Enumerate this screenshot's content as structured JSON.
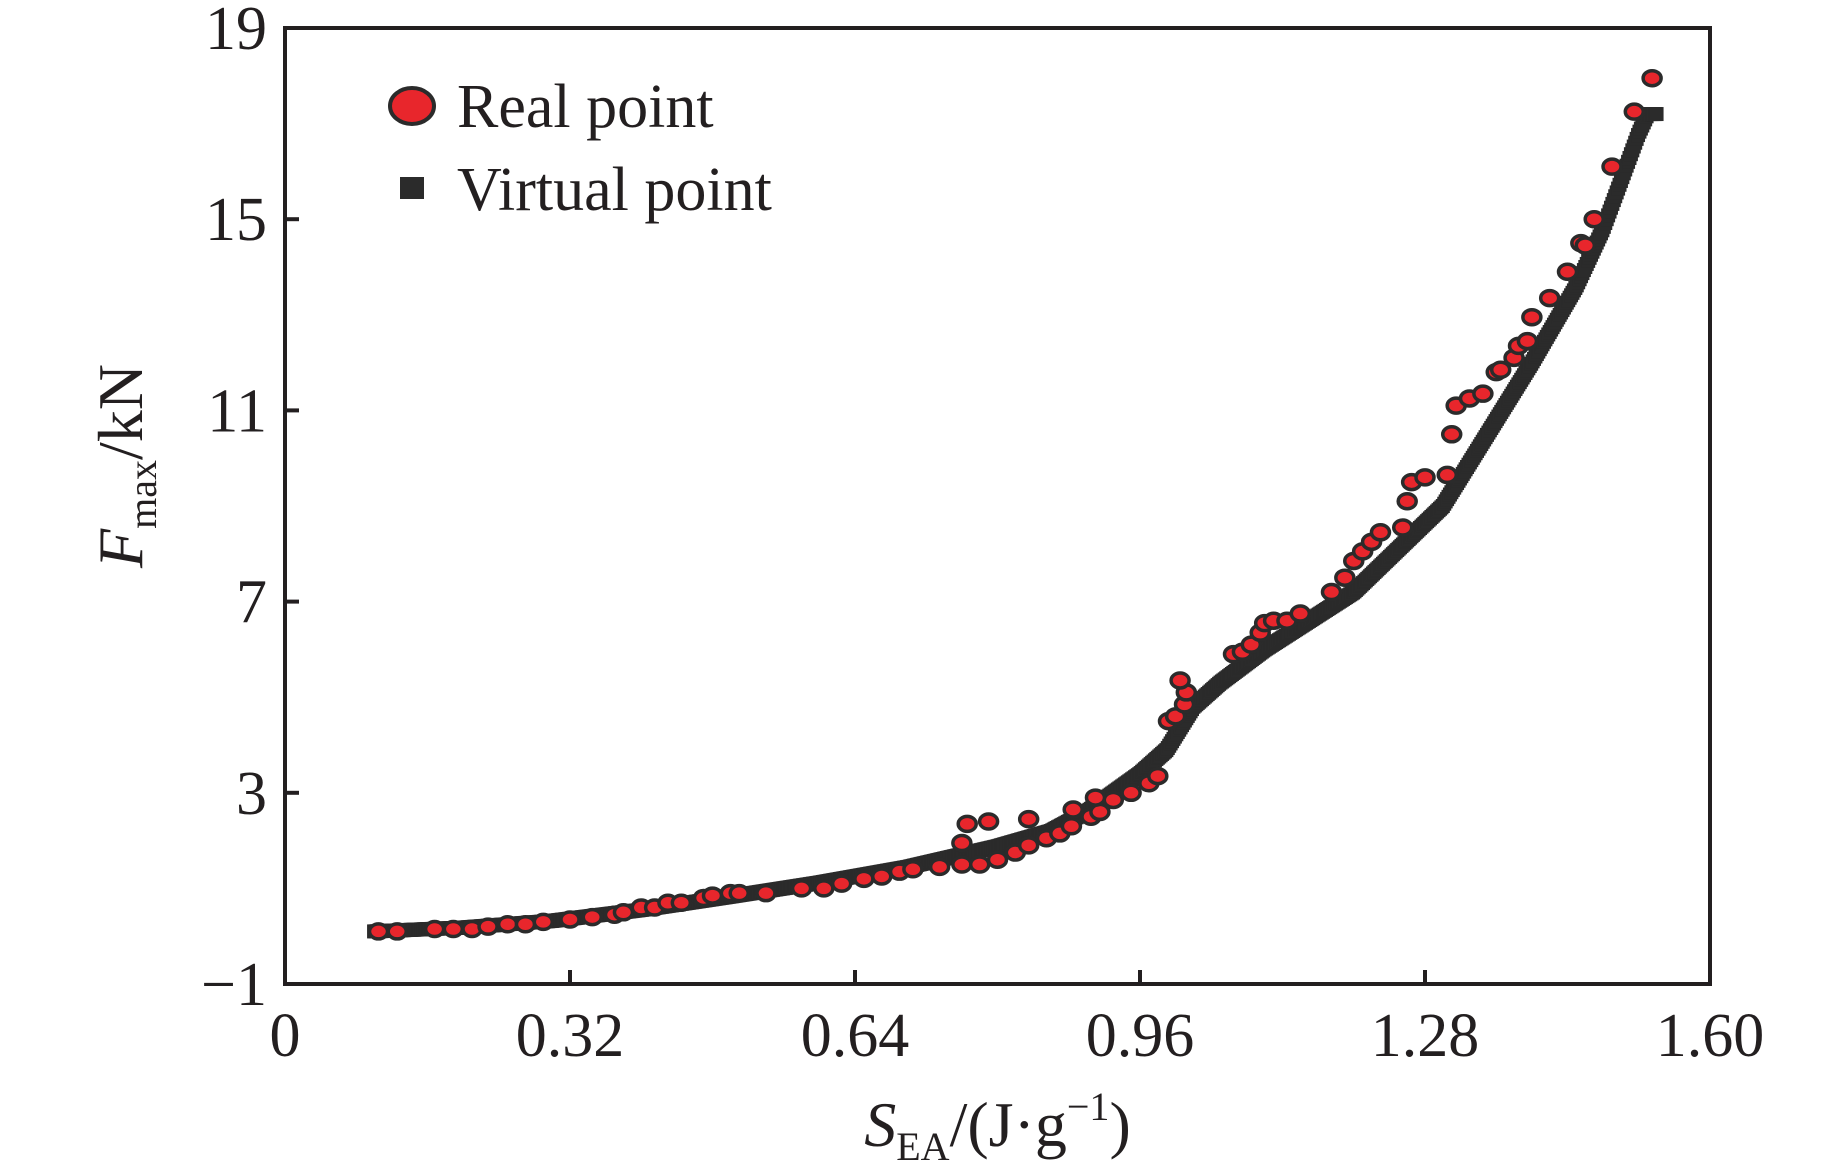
{
  "chart_data": {
    "type": "scatter",
    "xlabel": {
      "main": "S",
      "sub": "EA",
      "rest": "/(J·g",
      "sup": "−1",
      "close": ")"
    },
    "ylabel": {
      "main": "F",
      "sub": "max",
      "rest": "/kN"
    },
    "xlim": [
      0,
      1.6
    ],
    "ylim": [
      -1,
      19
    ],
    "xticks": [
      0,
      0.32,
      0.64,
      0.96,
      1.28,
      1.6
    ],
    "xtick_labels": [
      "0",
      "0.32",
      "0.64",
      "0.96",
      "1.28",
      "1.60"
    ],
    "yticks": [
      -1,
      3,
      7,
      11,
      15,
      19
    ],
    "ytick_labels": [
      "−1",
      "3",
      "7",
      "11",
      "15",
      "19"
    ],
    "grid": false,
    "legend_position": "top-left",
    "series": [
      {
        "name": "Real point",
        "marker": "circle",
        "color": "#e8262c",
        "edge_color": "#2b2b2b",
        "points": [
          [
            0.105,
            0.1
          ],
          [
            0.126,
            0.1
          ],
          [
            0.168,
            0.15
          ],
          [
            0.189,
            0.15
          ],
          [
            0.21,
            0.15
          ],
          [
            0.228,
            0.2
          ],
          [
            0.25,
            0.25
          ],
          [
            0.27,
            0.25
          ],
          [
            0.29,
            0.3
          ],
          [
            0.32,
            0.35
          ],
          [
            0.345,
            0.4
          ],
          [
            0.37,
            0.45
          ],
          [
            0.38,
            0.5
          ],
          [
            0.4,
            0.6
          ],
          [
            0.415,
            0.6
          ],
          [
            0.43,
            0.7
          ],
          [
            0.445,
            0.7
          ],
          [
            0.47,
            0.8
          ],
          [
            0.48,
            0.85
          ],
          [
            0.5,
            0.9
          ],
          [
            0.51,
            0.9
          ],
          [
            0.54,
            0.9
          ],
          [
            0.58,
            1.0
          ],
          [
            0.605,
            1.0
          ],
          [
            0.625,
            1.1
          ],
          [
            0.65,
            1.2
          ],
          [
            0.67,
            1.25
          ],
          [
            0.69,
            1.35
          ],
          [
            0.705,
            1.4
          ],
          [
            0.735,
            1.45
          ],
          [
            0.76,
            1.5
          ],
          [
            0.78,
            1.5
          ],
          [
            0.8,
            1.6
          ],
          [
            0.82,
            1.75
          ],
          [
            0.835,
            1.9
          ],
          [
            0.855,
            2.05
          ],
          [
            0.87,
            2.15
          ],
          [
            0.883,
            2.3
          ],
          [
            0.905,
            2.5
          ],
          [
            0.915,
            2.6
          ],
          [
            0.93,
            2.85
          ],
          [
            0.95,
            3.0
          ],
          [
            0.97,
            3.2
          ],
          [
            0.98,
            3.35
          ],
          [
            0.76,
            1.95
          ],
          [
            0.766,
            2.35
          ],
          [
            0.79,
            2.4
          ],
          [
            0.835,
            2.45
          ],
          [
            0.885,
            2.65
          ],
          [
            0.91,
            2.9
          ],
          [
            0.992,
            4.5
          ],
          [
            1.0,
            4.6
          ],
          [
            1.01,
            4.85
          ],
          [
            1.012,
            5.1
          ],
          [
            1.005,
            5.35
          ],
          [
            1.065,
            5.9
          ],
          [
            1.075,
            5.95
          ],
          [
            1.085,
            6.1
          ],
          [
            1.095,
            6.35
          ],
          [
            1.1,
            6.55
          ],
          [
            1.11,
            6.6
          ],
          [
            1.125,
            6.6
          ],
          [
            1.14,
            6.75
          ],
          [
            1.175,
            7.2
          ],
          [
            1.19,
            7.5
          ],
          [
            1.2,
            7.85
          ],
          [
            1.21,
            8.05
          ],
          [
            1.22,
            8.25
          ],
          [
            1.23,
            8.45
          ],
          [
            1.255,
            8.55
          ],
          [
            1.26,
            9.1
          ],
          [
            1.265,
            9.5
          ],
          [
            1.28,
            9.6
          ],
          [
            1.305,
            9.65
          ],
          [
            1.31,
            10.5
          ],
          [
            1.315,
            11.1
          ],
          [
            1.33,
            11.25
          ],
          [
            1.345,
            11.35
          ],
          [
            1.36,
            11.8
          ],
          [
            1.365,
            11.85
          ],
          [
            1.38,
            12.1
          ],
          [
            1.385,
            12.35
          ],
          [
            1.395,
            12.45
          ],
          [
            1.4,
            12.95
          ],
          [
            1.42,
            13.35
          ],
          [
            1.44,
            13.9
          ],
          [
            1.455,
            14.5
          ],
          [
            1.46,
            14.45
          ],
          [
            1.47,
            15.0
          ],
          [
            1.49,
            16.1
          ],
          [
            1.515,
            17.25
          ],
          [
            1.535,
            17.95
          ]
        ]
      },
      {
        "name": "Virtual point",
        "marker": "square",
        "color": "#2b2b2b",
        "curve": [
          [
            0.1,
            0.1
          ],
          [
            0.2,
            0.18
          ],
          [
            0.3,
            0.32
          ],
          [
            0.4,
            0.55
          ],
          [
            0.5,
            0.83
          ],
          [
            0.6,
            1.12
          ],
          [
            0.7,
            1.45
          ],
          [
            0.8,
            1.88
          ],
          [
            0.86,
            2.2
          ],
          [
            0.9,
            2.6
          ],
          [
            0.96,
            3.4
          ],
          [
            0.99,
            3.9
          ],
          [
            1.0,
            4.2
          ],
          [
            1.02,
            4.8
          ],
          [
            1.05,
            5.3
          ],
          [
            1.1,
            6.0
          ],
          [
            1.2,
            7.2
          ],
          [
            1.3,
            9.0
          ],
          [
            1.35,
            10.5
          ],
          [
            1.4,
            12.0
          ],
          [
            1.45,
            13.6
          ],
          [
            1.48,
            14.8
          ],
          [
            1.5,
            15.8
          ],
          [
            1.52,
            16.8
          ],
          [
            1.53,
            17.2
          ],
          [
            1.54,
            17.2
          ]
        ]
      }
    ]
  }
}
